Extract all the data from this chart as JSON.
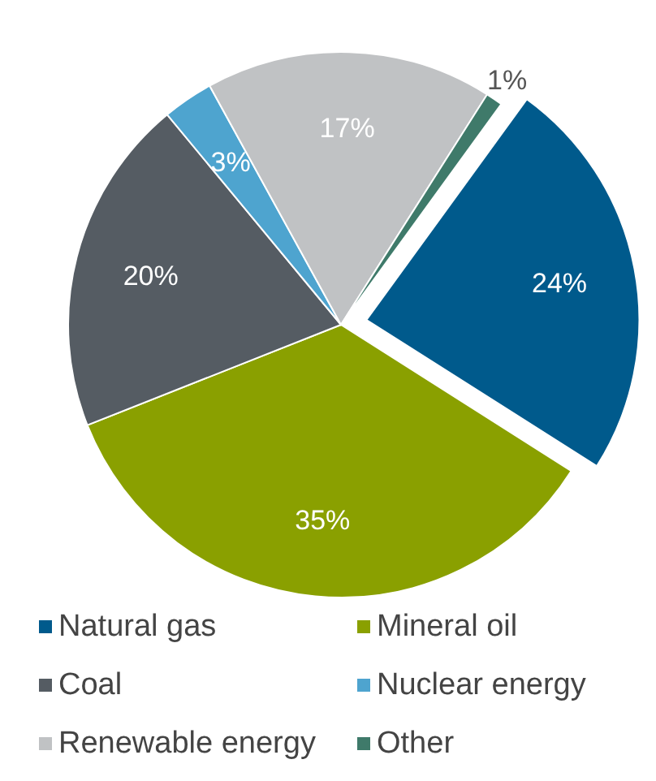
{
  "chart_data": {
    "type": "pie",
    "categories": [
      "Natural gas",
      "Mineral oil",
      "Coal",
      "Nuclear energy",
      "Renewable energy",
      "Other"
    ],
    "values": [
      24,
      35,
      20,
      3,
      17,
      1
    ],
    "colors": [
      "#005a8c",
      "#8aa000",
      "#555c63",
      "#4ea4cf",
      "#c0c2c4",
      "#3f7a6a"
    ],
    "value_labels": [
      "24%",
      "35%",
      "20%",
      "3%",
      "17%",
      "1%"
    ],
    "legend": "bottom",
    "marker": "square"
  }
}
